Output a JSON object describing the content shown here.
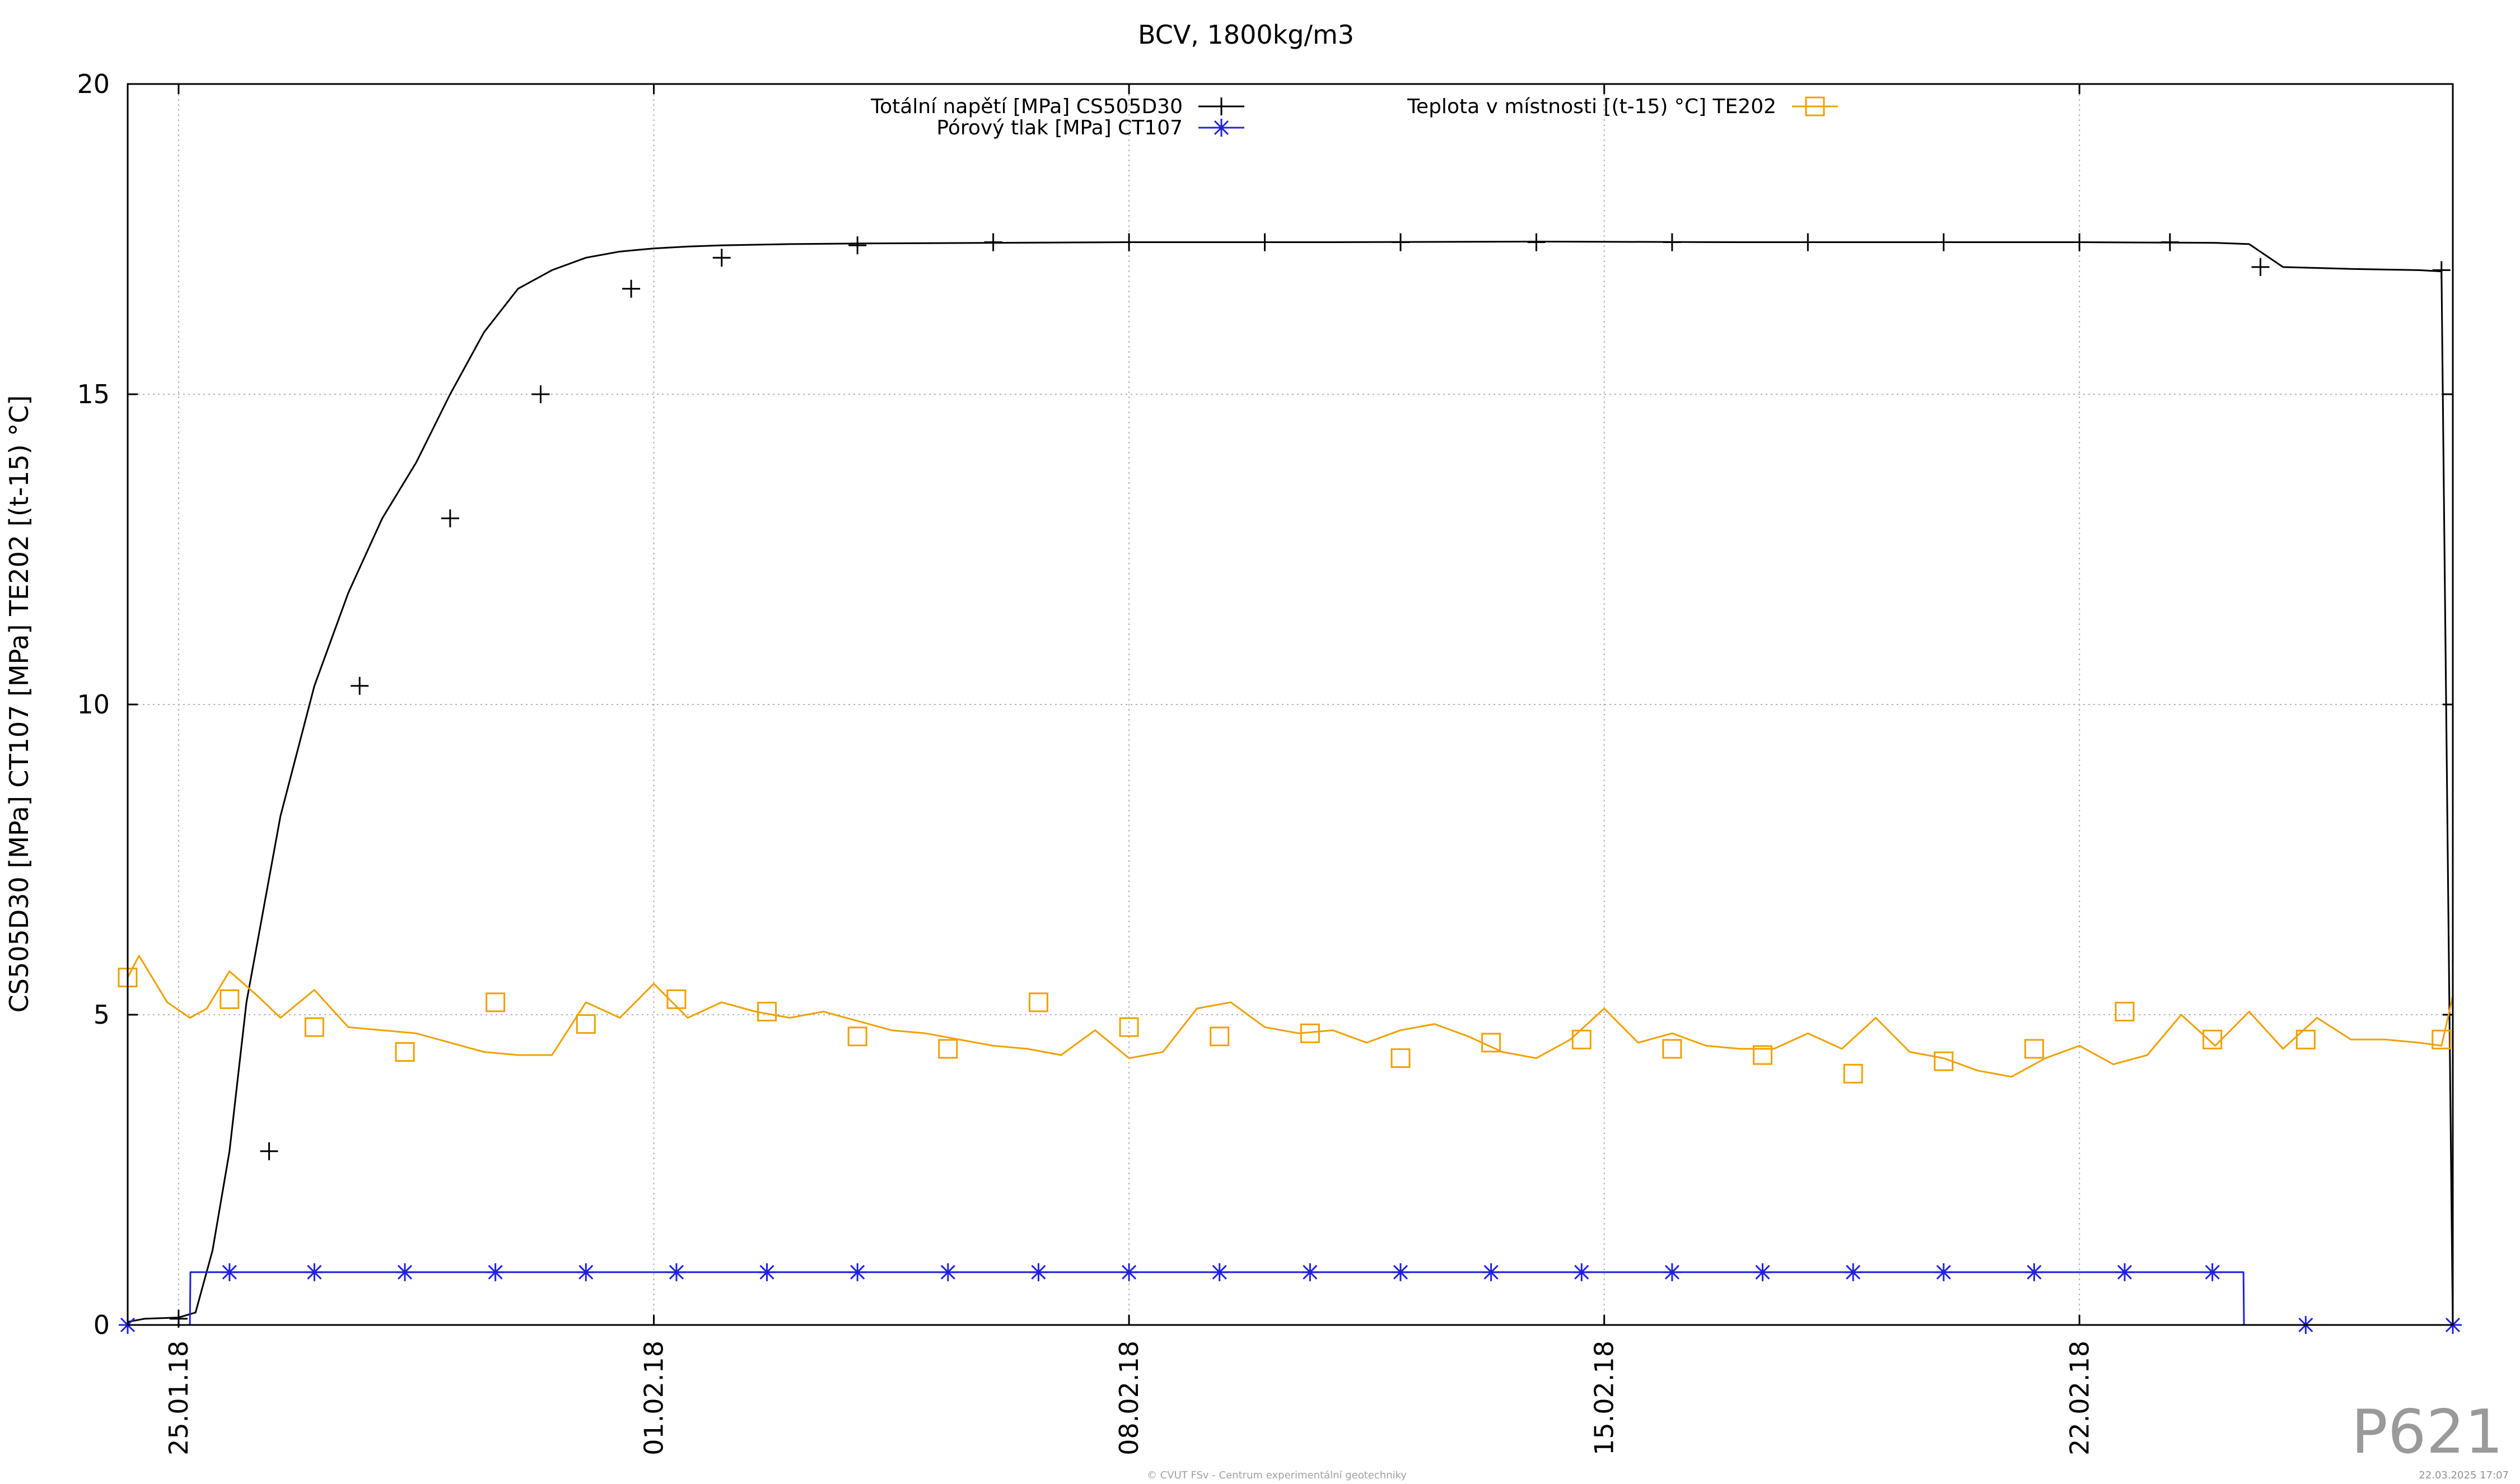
{
  "chart_data": {
    "type": "line",
    "title": "BCV, 1800kg/m3",
    "ylabel": "CS505D30 [MPa] CT107 [MPa] TE202 [(t-15) °C]",
    "xlabel": "",
    "ylim": [
      0,
      20
    ],
    "yticks": [
      0,
      5,
      10,
      15,
      20
    ],
    "xlim": [
      "2018-01-24 06:00",
      "2018-02-27 12:00"
    ],
    "xticks": [
      {
        "date": "2018-01-25",
        "label": "25.01.18"
      },
      {
        "date": "2018-02-01",
        "label": "01.02.18"
      },
      {
        "date": "2018-02-08",
        "label": "08.02.18"
      },
      {
        "date": "2018-02-15",
        "label": "15.02.18"
      },
      {
        "date": "2018-02-22",
        "label": "22.02.18"
      }
    ],
    "grid": true,
    "legend_position": "top",
    "series": [
      {
        "name": "Totální napětí [MPa] CS505D30",
        "color": "#000000",
        "marker": "plus",
        "x": [
          "2018-01-24 06:00",
          "2018-01-24 12:00",
          "2018-01-25 00:00",
          "2018-01-25 06:00",
          "2018-01-25 12:00",
          "2018-01-25 18:00",
          "2018-01-26 00:00",
          "2018-01-26 12:00",
          "2018-01-27 00:00",
          "2018-01-27 12:00",
          "2018-01-28 00:00",
          "2018-01-28 12:00",
          "2018-01-29 00:00",
          "2018-01-29 12:00",
          "2018-01-30 00:00",
          "2018-01-30 12:00",
          "2018-01-31 00:00",
          "2018-01-31 12:00",
          "2018-02-01 00:00",
          "2018-02-01 12:00",
          "2018-02-02 00:00",
          "2018-02-03 00:00",
          "2018-02-04 00:00",
          "2018-02-06 00:00",
          "2018-02-08 00:00",
          "2018-02-11 00:00",
          "2018-02-14 00:00",
          "2018-02-17 00:00",
          "2018-02-20 00:00",
          "2018-02-22 00:00",
          "2018-02-24 00:00",
          "2018-02-24 12:00",
          "2018-02-25 00:00",
          "2018-02-26 00:00",
          "2018-02-27 00:00",
          "2018-02-27 08:00",
          "2018-02-27 12:00"
        ],
        "y": [
          0.05,
          0.1,
          0.12,
          0.2,
          1.2,
          2.8,
          5.2,
          8.2,
          10.3,
          11.8,
          13.0,
          13.9,
          15.0,
          16.0,
          16.7,
          17.0,
          17.2,
          17.3,
          17.35,
          17.38,
          17.4,
          17.42,
          17.43,
          17.44,
          17.45,
          17.45,
          17.46,
          17.45,
          17.45,
          17.45,
          17.44,
          17.42,
          17.05,
          17.02,
          17.0,
          16.98,
          0.0
        ],
        "marker_x": [
          "2018-01-25 00:00",
          "2018-01-26 08:00",
          "2018-01-27 16:00",
          "2018-01-29 00:00",
          "2018-01-30 08:00",
          "2018-01-31 16:00",
          "2018-02-02 00:00",
          "2018-02-04 00:00",
          "2018-02-06 00:00",
          "2018-02-08 00:00",
          "2018-02-10 00:00",
          "2018-02-12 00:00",
          "2018-02-14 00:00",
          "2018-02-16 00:00",
          "2018-02-18 00:00",
          "2018-02-20 00:00",
          "2018-02-22 00:00",
          "2018-02-23 08:00",
          "2018-02-24 16:00",
          "2018-02-27 08:00"
        ],
        "marker_y": [
          0.1,
          2.8,
          10.3,
          13.0,
          15.0,
          16.7,
          17.2,
          17.4,
          17.45,
          17.45,
          17.45,
          17.45,
          17.45,
          17.45,
          17.45,
          17.45,
          17.45,
          17.45,
          17.05,
          17.0
        ]
      },
      {
        "name": "Pórový tlak [MPa] CT107",
        "color": "#2020e0",
        "marker": "star",
        "x": [
          "2018-01-24 06:00",
          "2018-01-25 04:00",
          "2018-01-25 04:10",
          "2018-02-24 10:00",
          "2018-02-24 10:10",
          "2018-02-27 12:00"
        ],
        "y": [
          0.0,
          0.0,
          0.85,
          0.85,
          0.0,
          0.0
        ],
        "marker_x": [
          "2018-01-24 06:00",
          "2018-01-25 18:00",
          "2018-01-27 00:00",
          "2018-01-28 08:00",
          "2018-01-29 16:00",
          "2018-01-31 00:00",
          "2018-02-01 08:00",
          "2018-02-02 16:00",
          "2018-02-04 00:00",
          "2018-02-05 08:00",
          "2018-02-06 16:00",
          "2018-02-08 00:00",
          "2018-02-09 08:00",
          "2018-02-10 16:00",
          "2018-02-12 00:00",
          "2018-02-13 08:00",
          "2018-02-14 16:00",
          "2018-02-16 00:00",
          "2018-02-17 08:00",
          "2018-02-18 16:00",
          "2018-02-20 00:00",
          "2018-02-21 08:00",
          "2018-02-22 16:00",
          "2018-02-23 23:00",
          "2018-02-25 08:00",
          "2018-02-27 12:00"
        ],
        "marker_y": [
          0.0,
          0.85,
          0.85,
          0.85,
          0.85,
          0.85,
          0.85,
          0.85,
          0.85,
          0.85,
          0.85,
          0.85,
          0.85,
          0.85,
          0.85,
          0.85,
          0.85,
          0.85,
          0.85,
          0.85,
          0.85,
          0.85,
          0.85,
          0.85,
          0.0,
          0.0
        ]
      },
      {
        "name": "Teplota v místnosti [(t-15) °C] TE202",
        "color": "#f0a000",
        "marker": "square",
        "x": [
          "2018-01-24 06:00",
          "2018-01-24 10:00",
          "2018-01-24 20:00",
          "2018-01-25 04:00",
          "2018-01-25 10:00",
          "2018-01-25 18:00",
          "2018-01-26 04:00",
          "2018-01-26 12:00",
          "2018-01-27 00:00",
          "2018-01-27 12:00",
          "2018-01-28 00:00",
          "2018-01-28 12:00",
          "2018-01-29 00:00",
          "2018-01-29 12:00",
          "2018-01-30 00:00",
          "2018-01-30 12:00",
          "2018-01-31 00:00",
          "2018-01-31 12:00",
          "2018-02-01 00:00",
          "2018-02-01 12:00",
          "2018-02-02 00:00",
          "2018-02-02 12:00",
          "2018-02-03 00:00",
          "2018-02-03 12:00",
          "2018-02-04 00:00",
          "2018-02-04 12:00",
          "2018-02-05 00:00",
          "2018-02-05 12:00",
          "2018-02-06 00:00",
          "2018-02-06 12:00",
          "2018-02-07 00:00",
          "2018-02-07 12:00",
          "2018-02-08 00:00",
          "2018-02-08 12:00",
          "2018-02-09 00:00",
          "2018-02-09 12:00",
          "2018-02-10 00:00",
          "2018-02-10 12:00",
          "2018-02-11 00:00",
          "2018-02-11 12:00",
          "2018-02-12 00:00",
          "2018-02-12 12:00",
          "2018-02-13 00:00",
          "2018-02-13 12:00",
          "2018-02-14 00:00",
          "2018-02-14 12:00",
          "2018-02-15 00:00",
          "2018-02-15 12:00",
          "2018-02-16 00:00",
          "2018-02-16 12:00",
          "2018-02-17 00:00",
          "2018-02-17 12:00",
          "2018-02-18 00:00",
          "2018-02-18 12:00",
          "2018-02-19 00:00",
          "2018-02-19 12:00",
          "2018-02-20 00:00",
          "2018-02-20 12:00",
          "2018-02-21 00:00",
          "2018-02-21 12:00",
          "2018-02-22 00:00",
          "2018-02-22 12:00",
          "2018-02-23 00:00",
          "2018-02-23 12:00",
          "2018-02-24 00:00",
          "2018-02-24 12:00",
          "2018-02-25 00:00",
          "2018-02-25 12:00",
          "2018-02-26 00:00",
          "2018-02-26 12:00",
          "2018-02-27 00:00",
          "2018-02-27 08:00",
          "2018-02-27 12:00"
        ],
        "y": [
          5.6,
          5.95,
          5.2,
          4.95,
          5.1,
          5.7,
          5.3,
          4.95,
          5.4,
          4.8,
          4.75,
          4.7,
          4.55,
          4.4,
          4.35,
          4.35,
          5.2,
          4.95,
          5.5,
          4.95,
          5.2,
          5.05,
          4.95,
          5.05,
          4.9,
          4.75,
          4.7,
          4.6,
          4.5,
          4.45,
          4.35,
          4.75,
          4.3,
          4.4,
          5.1,
          5.2,
          4.8,
          4.7,
          4.75,
          4.55,
          4.75,
          4.85,
          4.65,
          4.4,
          4.3,
          4.6,
          5.1,
          4.55,
          4.7,
          4.5,
          4.45,
          4.45,
          4.7,
          4.45,
          4.95,
          4.4,
          4.3,
          4.1,
          4.0,
          4.3,
          4.5,
          4.2,
          4.35,
          5.0,
          4.5,
          5.05,
          4.45,
          4.95,
          4.6,
          4.6,
          4.55,
          4.5,
          5.3
        ],
        "marker_x": [
          "2018-01-24 06:00",
          "2018-01-25 18:00",
          "2018-01-27 00:00",
          "2018-01-28 08:00",
          "2018-01-29 16:00",
          "2018-01-31 00:00",
          "2018-02-01 08:00",
          "2018-02-02 16:00",
          "2018-02-04 00:00",
          "2018-02-05 08:00",
          "2018-02-06 16:00",
          "2018-02-08 00:00",
          "2018-02-09 08:00",
          "2018-02-10 16:00",
          "2018-02-12 00:00",
          "2018-02-13 08:00",
          "2018-02-14 16:00",
          "2018-02-16 00:00",
          "2018-02-17 08:00",
          "2018-02-18 16:00",
          "2018-02-20 00:00",
          "2018-02-21 08:00",
          "2018-02-22 16:00",
          "2018-02-23 23:00",
          "2018-02-25 08:00",
          "2018-02-27 08:00"
        ],
        "marker_y": [
          5.6,
          5.25,
          4.8,
          4.4,
          5.2,
          4.85,
          5.25,
          5.05,
          4.65,
          4.45,
          5.2,
          4.8,
          4.65,
          4.7,
          4.3,
          4.55,
          4.6,
          4.45,
          4.35,
          4.05,
          4.25,
          4.45,
          5.05,
          4.6,
          4.6,
          4.6
        ]
      }
    ]
  },
  "watermark": {
    "label": "P621",
    "footer_credit": "© CVUT FSv - Centrum experimentální geotechniky",
    "footer_timestamp": "22.03.2025 17:07"
  }
}
